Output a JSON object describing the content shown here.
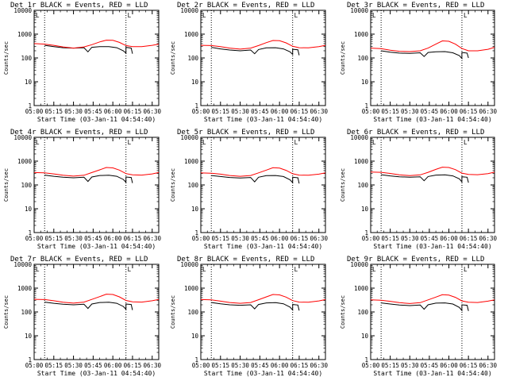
{
  "common": {
    "x_ticks": [
      "05:00",
      "05:15",
      "05:30",
      "05:45",
      "06:00",
      "06:15",
      "06:30"
    ],
    "y_ticks": [
      "1",
      "10",
      "100",
      "1000",
      "10000"
    ],
    "ylabel": "Counts/sec",
    "xlabel": "Start Time (03-Jan-11 04:54:40)",
    "marker_label": "L",
    "colors": {
      "events": "#000000",
      "lld": "#ff0000",
      "axis": "#000000"
    },
    "scale": "log"
  },
  "panels": [
    {
      "title": "Det 1r BLACK = Events, RED = LLD"
    },
    {
      "title": "Det 2r BLACK = Events, RED = LLD"
    },
    {
      "title": "Det 3r BLACK = Events, RED = LLD"
    },
    {
      "title": "Det 4r BLACK = Events, RED = LLD"
    },
    {
      "title": "Det 5r BLACK = Events, RED = LLD"
    },
    {
      "title": "Det 6r BLACK = Events, RED = LLD"
    },
    {
      "title": "Det 7r BLACK = Events, RED = LLD"
    },
    {
      "title": "Det 8r BLACK = Events, RED = LLD"
    },
    {
      "title": "Det 9r BLACK = Events, RED = LLD"
    }
  ],
  "chart_data": [
    {
      "type": "line",
      "title": "Det 1r BLACK = Events, RED = LLD",
      "xlabel": "Start Time (03-Jan-11 04:54:40)",
      "ylabel": "Counts/sec",
      "ylim": [
        1,
        10000
      ],
      "yscale": "log",
      "xlim": [
        "05:00",
        "06:35"
      ],
      "vlines": [
        "05:08",
        "06:10"
      ],
      "series": [
        {
          "name": "Events",
          "color": "#000000",
          "x": [
            "05:08",
            "05:15",
            "05:22",
            "05:30",
            "05:38",
            "05:41",
            "05:44",
            "05:50",
            "05:57",
            "06:03",
            "06:08",
            "06:10",
            "06:10",
            "06:14",
            "06:15"
          ],
          "y": [
            340,
            300,
            270,
            260,
            270,
            180,
            280,
            300,
            300,
            270,
            200,
            160,
            280,
            260,
            150
          ]
        },
        {
          "name": "LLD",
          "color": "#ff0000",
          "x": [
            "05:00",
            "05:08",
            "05:15",
            "05:22",
            "05:30",
            "05:38",
            "05:44",
            "05:50",
            "05:55",
            "06:00",
            "06:05",
            "06:10",
            "06:15",
            "06:22",
            "06:30",
            "06:35"
          ],
          "y": [
            400,
            380,
            340,
            290,
            260,
            290,
            360,
            470,
            560,
            550,
            450,
            330,
            300,
            300,
            340,
            380
          ]
        }
      ]
    },
    {
      "type": "line",
      "title": "Det 2r BLACK = Events, RED = LLD",
      "xlabel": "Start Time (03-Jan-11 04:54:40)",
      "ylabel": "Counts/sec",
      "ylim": [
        1,
        10000
      ],
      "yscale": "log",
      "xlim": [
        "05:00",
        "06:35"
      ],
      "vlines": [
        "05:08",
        "06:10"
      ],
      "series": [
        {
          "name": "Events",
          "color": "#000000",
          "x": [
            "05:08",
            "05:15",
            "05:22",
            "05:30",
            "05:38",
            "05:41",
            "05:44",
            "05:50",
            "05:57",
            "06:03",
            "06:08",
            "06:10",
            "06:10",
            "06:14",
            "06:15"
          ],
          "y": [
            280,
            240,
            215,
            200,
            215,
            150,
            225,
            265,
            270,
            240,
            180,
            140,
            230,
            220,
            130
          ]
        },
        {
          "name": "LLD",
          "color": "#ff0000",
          "x": [
            "05:00",
            "05:08",
            "05:15",
            "05:22",
            "05:30",
            "05:38",
            "05:44",
            "05:50",
            "05:55",
            "06:00",
            "06:05",
            "06:10",
            "06:15",
            "06:22",
            "06:30",
            "06:35"
          ],
          "y": [
            340,
            330,
            300,
            260,
            235,
            260,
            330,
            440,
            540,
            530,
            430,
            310,
            270,
            265,
            300,
            340
          ]
        }
      ]
    },
    {
      "type": "line",
      "title": "Det 3r BLACK = Events, RED = LLD",
      "xlabel": "Start Time (03-Jan-11 04:54:40)",
      "ylabel": "Counts/sec",
      "ylim": [
        1,
        10000
      ],
      "yscale": "log",
      "xlim": [
        "05:00",
        "06:35"
      ],
      "vlines": [
        "05:08",
        "06:10"
      ],
      "series": [
        {
          "name": "Events",
          "color": "#000000",
          "x": [
            "05:08",
            "05:15",
            "05:22",
            "05:30",
            "05:38",
            "05:41",
            "05:44",
            "05:50",
            "05:57",
            "06:03",
            "06:08",
            "06:10",
            "06:10",
            "06:14",
            "06:15"
          ],
          "y": [
            200,
            175,
            160,
            155,
            165,
            115,
            170,
            180,
            185,
            165,
            125,
            95,
            170,
            160,
            100
          ]
        },
        {
          "name": "LLD",
          "color": "#ff0000",
          "x": [
            "05:00",
            "05:08",
            "05:15",
            "05:22",
            "05:30",
            "05:38",
            "05:44",
            "05:50",
            "05:55",
            "06:00",
            "06:05",
            "06:10",
            "06:15",
            "06:22",
            "06:30",
            "06:35"
          ],
          "y": [
            260,
            245,
            210,
            190,
            185,
            200,
            260,
            380,
            520,
            500,
            380,
            250,
            200,
            200,
            230,
            280
          ]
        }
      ]
    },
    {
      "type": "line",
      "title": "Det 4r BLACK = Events, RED = LLD",
      "xlabel": "Start Time (03-Jan-11 04:54:40)",
      "ylabel": "Counts/sec",
      "ylim": [
        1,
        10000
      ],
      "yscale": "log",
      "xlim": [
        "05:00",
        "06:35"
      ],
      "vlines": [
        "05:08",
        "06:10"
      ],
      "series": [
        {
          "name": "Events",
          "color": "#000000",
          "x": [
            "05:08",
            "05:15",
            "05:22",
            "05:30",
            "05:38",
            "05:41",
            "05:44",
            "05:50",
            "05:57",
            "06:03",
            "06:08",
            "06:10",
            "06:10",
            "06:14",
            "06:15"
          ],
          "y": [
            260,
            230,
            210,
            200,
            210,
            140,
            215,
            250,
            255,
            230,
            170,
            130,
            215,
            205,
            120
          ]
        },
        {
          "name": "LLD",
          "color": "#ff0000",
          "x": [
            "05:00",
            "05:08",
            "05:15",
            "05:22",
            "05:30",
            "05:38",
            "05:44",
            "05:50",
            "05:55",
            "06:00",
            "06:05",
            "06:10",
            "06:15",
            "06:22",
            "06:30",
            "06:35"
          ],
          "y": [
            330,
            320,
            290,
            255,
            235,
            255,
            330,
            430,
            540,
            520,
            420,
            300,
            265,
            260,
            290,
            330
          ]
        }
      ]
    },
    {
      "type": "line",
      "title": "Det 5r BLACK = Events, RED = LLD",
      "xlabel": "Start Time (03-Jan-11 04:54:40)",
      "ylabel": "Counts/sec",
      "ylim": [
        1,
        10000
      ],
      "yscale": "log",
      "xlim": [
        "05:00",
        "06:35"
      ],
      "vlines": [
        "05:08",
        "06:10"
      ],
      "series": [
        {
          "name": "Events",
          "color": "#000000",
          "x": [
            "05:08",
            "05:15",
            "05:22",
            "05:30",
            "05:38",
            "05:41",
            "05:44",
            "05:50",
            "05:57",
            "06:03",
            "06:08",
            "06:10",
            "06:10",
            "06:14",
            "06:15"
          ],
          "y": [
            250,
            225,
            205,
            195,
            205,
            135,
            210,
            245,
            250,
            225,
            165,
            125,
            210,
            200,
            115
          ]
        },
        {
          "name": "LLD",
          "color": "#ff0000",
          "x": [
            "05:00",
            "05:08",
            "05:15",
            "05:22",
            "05:30",
            "05:38",
            "05:44",
            "05:50",
            "05:55",
            "06:00",
            "06:05",
            "06:10",
            "06:15",
            "06:22",
            "06:30",
            "06:35"
          ],
          "y": [
            320,
            310,
            285,
            250,
            230,
            250,
            320,
            420,
            530,
            510,
            410,
            295,
            260,
            255,
            285,
            320
          ]
        }
      ]
    },
    {
      "type": "line",
      "title": "Det 6r BLACK = Events, RED = LLD",
      "xlabel": "Start Time (03-Jan-11 04:54:40)",
      "ylabel": "Counts/sec",
      "ylim": [
        1,
        10000
      ],
      "yscale": "log",
      "xlim": [
        "05:00",
        "06:35"
      ],
      "vlines": [
        "05:08",
        "06:10"
      ],
      "series": [
        {
          "name": "Events",
          "color": "#000000",
          "x": [
            "05:08",
            "05:15",
            "05:22",
            "05:30",
            "05:38",
            "05:41",
            "05:44",
            "05:50",
            "05:57",
            "06:03",
            "06:08",
            "06:10",
            "06:10",
            "06:14",
            "06:15"
          ],
          "y": [
            270,
            240,
            220,
            210,
            220,
            150,
            225,
            260,
            265,
            240,
            180,
            135,
            220,
            210,
            125
          ]
        },
        {
          "name": "LLD",
          "color": "#ff0000",
          "x": [
            "05:00",
            "05:08",
            "05:15",
            "05:22",
            "05:30",
            "05:38",
            "05:44",
            "05:50",
            "05:55",
            "06:00",
            "06:05",
            "06:10",
            "06:15",
            "06:22",
            "06:30",
            "06:35"
          ],
          "y": [
            350,
            340,
            305,
            265,
            245,
            265,
            340,
            450,
            560,
            540,
            440,
            315,
            275,
            270,
            300,
            345
          ]
        }
      ]
    },
    {
      "type": "line",
      "title": "Det 7r BLACK = Events, RED = LLD",
      "xlabel": "Start Time (03-Jan-11 04:54:40)",
      "ylabel": "Counts/sec",
      "ylim": [
        1,
        10000
      ],
      "yscale": "log",
      "xlim": [
        "05:00",
        "06:35"
      ],
      "vlines": [
        "05:08",
        "06:10"
      ],
      "series": [
        {
          "name": "Events",
          "color": "#000000",
          "x": [
            "05:08",
            "05:15",
            "05:22",
            "05:30",
            "05:38",
            "05:41",
            "05:44",
            "05:50",
            "05:57",
            "06:03",
            "06:08",
            "06:10",
            "06:10",
            "06:14",
            "06:15"
          ],
          "y": [
            260,
            230,
            210,
            200,
            210,
            140,
            215,
            250,
            255,
            230,
            170,
            130,
            215,
            205,
            120
          ]
        },
        {
          "name": "LLD",
          "color": "#ff0000",
          "x": [
            "05:00",
            "05:08",
            "05:15",
            "05:22",
            "05:30",
            "05:38",
            "05:44",
            "05:50",
            "05:55",
            "06:00",
            "06:05",
            "06:10",
            "06:15",
            "06:22",
            "06:30",
            "06:35"
          ],
          "y": [
            340,
            330,
            295,
            255,
            235,
            260,
            335,
            440,
            560,
            540,
            430,
            305,
            265,
            260,
            295,
            335
          ]
        }
      ]
    },
    {
      "type": "line",
      "title": "Det 8r BLACK = Events, RED = LLD",
      "xlabel": "Start Time (03-Jan-11 04:54:40)",
      "ylabel": "Counts/sec",
      "ylim": [
        1,
        10000
      ],
      "yscale": "log",
      "xlim": [
        "05:00",
        "06:35"
      ],
      "vlines": [
        "05:08",
        "06:10"
      ],
      "series": [
        {
          "name": "Events",
          "color": "#000000",
          "x": [
            "05:08",
            "05:15",
            "05:22",
            "05:30",
            "05:38",
            "05:41",
            "05:44",
            "05:50",
            "05:57",
            "06:03",
            "06:08",
            "06:10",
            "06:10",
            "06:14",
            "06:15"
          ],
          "y": [
            250,
            220,
            200,
            190,
            200,
            135,
            205,
            240,
            245,
            220,
            160,
            120,
            205,
            195,
            115
          ]
        },
        {
          "name": "LLD",
          "color": "#ff0000",
          "x": [
            "05:00",
            "05:08",
            "05:15",
            "05:22",
            "05:30",
            "05:38",
            "05:44",
            "05:50",
            "05:55",
            "06:00",
            "06:05",
            "06:10",
            "06:15",
            "06:22",
            "06:30",
            "06:35"
          ],
          "y": [
            330,
            320,
            285,
            250,
            230,
            250,
            325,
            430,
            540,
            520,
            420,
            300,
            260,
            255,
            290,
            330
          ]
        }
      ]
    },
    {
      "type": "line",
      "title": "Det 9r BLACK = Events, RED = LLD",
      "xlabel": "Start Time (03-Jan-11 04:54:40)",
      "ylabel": "Counts/sec",
      "ylim": [
        1,
        10000
      ],
      "yscale": "log",
      "xlim": [
        "05:00",
        "06:35"
      ],
      "vlines": [
        "05:08",
        "06:10"
      ],
      "series": [
        {
          "name": "Events",
          "color": "#000000",
          "x": [
            "05:08",
            "05:15",
            "05:22",
            "05:30",
            "05:38",
            "05:41",
            "05:44",
            "05:50",
            "05:57",
            "06:03",
            "06:08",
            "06:10",
            "06:10",
            "06:14",
            "06:15"
          ],
          "y": [
            240,
            215,
            195,
            185,
            195,
            130,
            200,
            235,
            240,
            215,
            155,
            115,
            200,
            190,
            110
          ]
        },
        {
          "name": "LLD",
          "color": "#ff0000",
          "x": [
            "05:00",
            "05:08",
            "05:15",
            "05:22",
            "05:30",
            "05:38",
            "05:44",
            "05:50",
            "05:55",
            "06:00",
            "06:05",
            "06:10",
            "06:15",
            "06:22",
            "06:30",
            "06:35"
          ],
          "y": [
            320,
            310,
            280,
            245,
            225,
            245,
            320,
            420,
            530,
            510,
            410,
            290,
            255,
            250,
            285,
            320
          ]
        }
      ]
    }
  ]
}
